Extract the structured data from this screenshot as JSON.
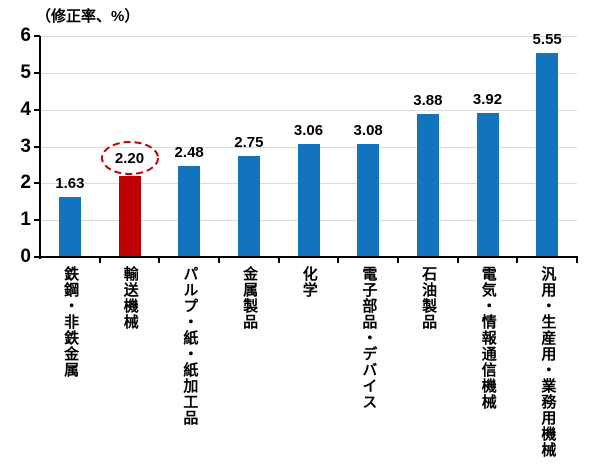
{
  "chart_data": {
    "type": "bar",
    "title": "（修正率、%）",
    "ylabel": "（修正率、%）",
    "xlabel": "",
    "categories": [
      "鉄鋼・非鉄金属",
      "輸送機械",
      "パルプ・紙・紙加工品",
      "金属製品",
      "化学",
      "電子部品・デバイス",
      "石油製品",
      "電気・情報通信機械",
      "汎用・生産用・業務用機械"
    ],
    "values": [
      1.63,
      2.2,
      2.48,
      2.75,
      3.06,
      3.08,
      3.88,
      3.92,
      5.55
    ],
    "value_labels": [
      "1.63",
      "2.20",
      "2.48",
      "2.75",
      "3.06",
      "3.08",
      "3.88",
      "3.92",
      "5.55"
    ],
    "ylim": [
      0,
      6
    ],
    "yticks": [
      0,
      1,
      2,
      3,
      4,
      5,
      6
    ],
    "grid": true,
    "legend": false,
    "highlight": {
      "index": 1,
      "annotation": "dashed-ellipse-around-value-label"
    },
    "colors": {
      "bar": "#1273BE",
      "highlight_bar": "#C00000",
      "annotation": "#C00000",
      "gridline": "#DCDCDC",
      "axis": "#000000",
      "text": "#000000",
      "background": "#FFFFFF"
    }
  }
}
